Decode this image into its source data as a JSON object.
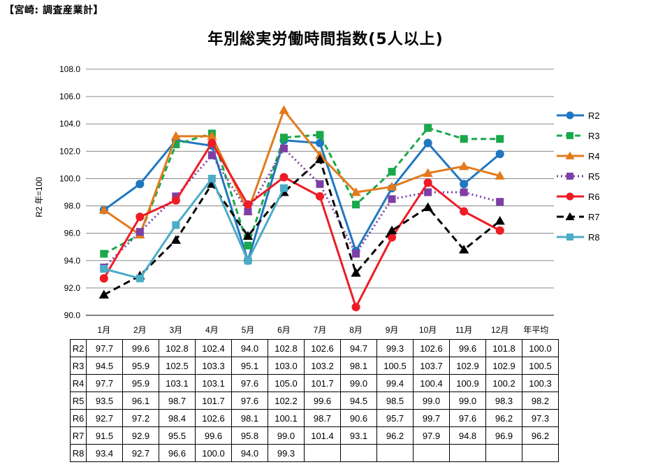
{
  "header": {
    "corner_label": "【宮崎: 調査産業計】"
  },
  "chart_data": {
    "type": "line",
    "title": "年別総実労働時間指数(5人以上)",
    "ylabel": "R2 年=100",
    "ylim": [
      90,
      108
    ],
    "yticks": [
      "90.0",
      "92.0",
      "94.0",
      "96.0",
      "98.0",
      "100.0",
      "102.0",
      "104.0",
      "106.0",
      "108.0"
    ],
    "categories": [
      "1月",
      "2月",
      "3月",
      "4月",
      "5月",
      "6月",
      "7月",
      "8月",
      "9月",
      "10月",
      "11月",
      "12月",
      "年平均"
    ],
    "grid": true,
    "legend_position": "right",
    "series": [
      {
        "name": "R2",
        "color": "#1f77c0",
        "dash": "",
        "marker": "circle",
        "values": [
          97.7,
          99.6,
          102.8,
          102.4,
          94.0,
          102.8,
          102.6,
          94.7,
          99.3,
          102.6,
          99.6,
          101.8,
          100.0
        ]
      },
      {
        "name": "R3",
        "color": "#19a84a",
        "dash": "8,5",
        "marker": "square",
        "values": [
          94.5,
          95.9,
          102.5,
          103.3,
          95.1,
          103.0,
          103.2,
          98.1,
          100.5,
          103.7,
          102.9,
          102.9,
          100.5
        ]
      },
      {
        "name": "R4",
        "color": "#e27a1c",
        "dash": "",
        "marker": "triangle",
        "values": [
          97.7,
          95.9,
          103.1,
          103.1,
          97.6,
          105.0,
          101.7,
          99.0,
          99.4,
          100.4,
          100.9,
          100.2,
          100.3
        ]
      },
      {
        "name": "R5",
        "color": "#7d3fa5",
        "dash": "2,4",
        "marker": "square",
        "values": [
          93.5,
          96.1,
          98.7,
          101.7,
          97.6,
          102.2,
          99.6,
          94.5,
          98.5,
          99.0,
          99.0,
          98.3,
          98.2
        ]
      },
      {
        "name": "R6",
        "color": "#ee1c25",
        "dash": "",
        "marker": "circle",
        "values": [
          92.7,
          97.2,
          98.4,
          102.6,
          98.1,
          100.1,
          98.7,
          90.6,
          95.7,
          99.7,
          97.6,
          96.2,
          97.3
        ]
      },
      {
        "name": "R7",
        "color": "#000000",
        "dash": "10,6",
        "marker": "triangle",
        "values": [
          91.5,
          92.9,
          95.5,
          99.6,
          95.8,
          99.0,
          101.4,
          93.1,
          96.2,
          97.9,
          94.8,
          96.9,
          96.2
        ]
      },
      {
        "name": "R8",
        "color": "#4bacc6",
        "dash": "",
        "marker": "square",
        "values": [
          93.4,
          92.7,
          96.6,
          100.0,
          94.0,
          99.3,
          null,
          null,
          null,
          null,
          null,
          null,
          null
        ]
      }
    ],
    "table": [
      {
        "label": "R2",
        "cells": [
          "97.7",
          "99.6",
          "102.8",
          "102.4",
          "94.0",
          "102.8",
          "102.6",
          "94.7",
          "99.3",
          "102.6",
          "99.6",
          "101.8",
          "100.0"
        ]
      },
      {
        "label": "R3",
        "cells": [
          "94.5",
          "95.9",
          "102.5",
          "103.3",
          "95.1",
          "103.0",
          "103.2",
          "98.1",
          "100.5",
          "103.7",
          "102.9",
          "102.9",
          "100.5"
        ]
      },
      {
        "label": "R4",
        "cells": [
          "97.7",
          "95.9",
          "103.1",
          "103.1",
          "97.6",
          "105.0",
          "101.7",
          "99.0",
          "99.4",
          "100.4",
          "100.9",
          "100.2",
          "100.3"
        ]
      },
      {
        "label": "R5",
        "cells": [
          "93.5",
          "96.1",
          "98.7",
          "101.7",
          "97.6",
          "102.2",
          "99.6",
          "94.5",
          "98.5",
          "99.0",
          "99.0",
          "98.3",
          "98.2"
        ]
      },
      {
        "label": "R6",
        "cells": [
          "92.7",
          "97.2",
          "98.4",
          "102.6",
          "98.1",
          "100.1",
          "98.7",
          "90.6",
          "95.7",
          "99.7",
          "97.6",
          "96.2",
          "97.3"
        ]
      },
      {
        "label": "R7",
        "cells": [
          "91.5",
          "92.9",
          "95.5",
          "99.6",
          "95.8",
          "99.0",
          "101.4",
          "93.1",
          "96.2",
          "97.9",
          "94.8",
          "96.9",
          "96.2"
        ]
      },
      {
        "label": "R8",
        "cells": [
          "93.4",
          "92.7",
          "96.6",
          "100.0",
          "94.0",
          "99.3",
          "",
          "",
          "",
          "",
          "",
          "",
          ""
        ]
      }
    ]
  }
}
